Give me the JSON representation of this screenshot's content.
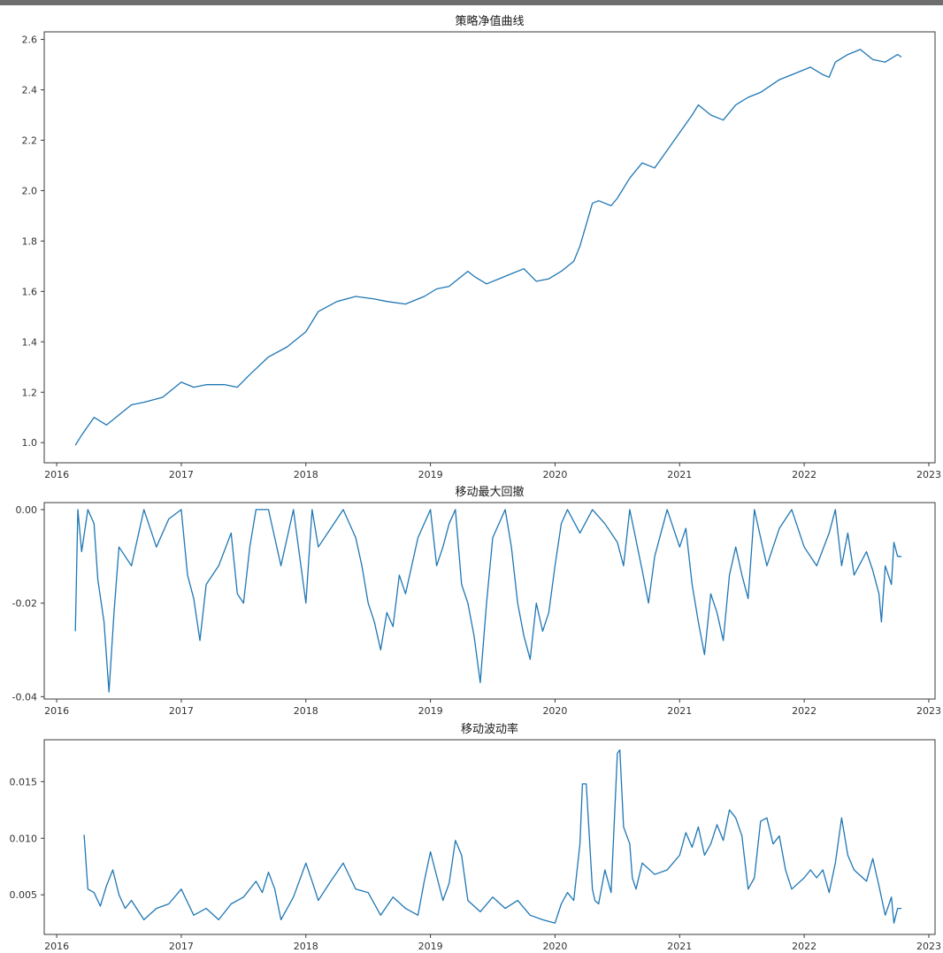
{
  "chart_data": [
    {
      "type": "line",
      "title": "策略净值曲线",
      "xlabel": "",
      "ylabel": "",
      "x_ticks": [
        "2016",
        "2017",
        "2018",
        "2019",
        "2020",
        "2021",
        "2022",
        "2023"
      ],
      "x_range": [
        2015.9,
        2023.05
      ],
      "y_ticks": [
        "1.0",
        "1.2",
        "1.4",
        "1.6",
        "1.8",
        "2.0",
        "2.2",
        "2.4",
        "2.6"
      ],
      "ylim": [
        0.92,
        2.63
      ],
      "grid": false,
      "series": [
        {
          "x": [
            2016.15,
            2016.2,
            2016.3,
            2016.4,
            2016.5,
            2016.6,
            2016.7,
            2016.85,
            2017.0,
            2017.1,
            2017.2,
            2017.35,
            2017.45,
            2017.55,
            2017.7,
            2017.85,
            2018.0,
            2018.1,
            2018.25,
            2018.4,
            2018.55,
            2018.65,
            2018.8,
            2018.95,
            2019.05,
            2019.15,
            2019.2,
            2019.3,
            2019.35,
            2019.45,
            2019.55,
            2019.65,
            2019.75,
            2019.85,
            2019.95,
            2020.05,
            2020.15,
            2020.2,
            2020.3,
            2020.35,
            2020.45,
            2020.5,
            2020.6,
            2020.7,
            2020.8,
            2020.9,
            2021.0,
            2021.1,
            2021.15,
            2021.25,
            2021.35,
            2021.45,
            2021.55,
            2021.65,
            2021.8,
            2021.95,
            2022.05,
            2022.15,
            2022.2,
            2022.25,
            2022.35,
            2022.45,
            2022.55,
            2022.65,
            2022.75,
            2022.78
          ],
          "values": [
            0.99,
            1.03,
            1.1,
            1.07,
            1.11,
            1.15,
            1.16,
            1.18,
            1.24,
            1.22,
            1.23,
            1.23,
            1.22,
            1.27,
            1.34,
            1.38,
            1.44,
            1.52,
            1.56,
            1.58,
            1.57,
            1.56,
            1.55,
            1.58,
            1.61,
            1.62,
            1.64,
            1.68,
            1.66,
            1.63,
            1.65,
            1.67,
            1.69,
            1.64,
            1.65,
            1.68,
            1.72,
            1.78,
            1.95,
            1.96,
            1.94,
            1.97,
            2.05,
            2.11,
            2.09,
            2.16,
            2.23,
            2.3,
            2.34,
            2.3,
            2.28,
            2.34,
            2.37,
            2.39,
            2.44,
            2.47,
            2.49,
            2.46,
            2.45,
            2.51,
            2.54,
            2.56,
            2.52,
            2.51,
            2.54,
            2.53
          ]
        }
      ]
    },
    {
      "type": "line",
      "title": "移动最大回撤",
      "xlabel": "",
      "ylabel": "",
      "x_ticks": [
        "2016",
        "2017",
        "2018",
        "2019",
        "2020",
        "2021",
        "2022",
        "2023"
      ],
      "x_range": [
        2015.9,
        2023.05
      ],
      "y_ticks": [
        "0.00",
        "-0.02",
        "-0.04"
      ],
      "ylim": [
        -0.0405,
        0.0015
      ],
      "grid": false,
      "series": [
        {
          "x": [
            2016.15,
            2016.17,
            2016.2,
            2016.25,
            2016.3,
            2016.33,
            2016.38,
            2016.42,
            2016.46,
            2016.5,
            2016.6,
            2016.7,
            2016.8,
            2016.9,
            2017.0,
            2017.05,
            2017.1,
            2017.15,
            2017.2,
            2017.3,
            2017.4,
            2017.45,
            2017.5,
            2017.55,
            2017.6,
            2017.7,
            2017.8,
            2017.9,
            2018.0,
            2018.05,
            2018.1,
            2018.2,
            2018.3,
            2018.4,
            2018.45,
            2018.5,
            2018.55,
            2018.6,
            2018.65,
            2018.7,
            2018.75,
            2018.8,
            2018.9,
            2019.0,
            2019.05,
            2019.1,
            2019.15,
            2019.2,
            2019.25,
            2019.3,
            2019.35,
            2019.4,
            2019.45,
            2019.5,
            2019.6,
            2019.65,
            2019.7,
            2019.75,
            2019.8,
            2019.85,
            2019.9,
            2019.95,
            2020.0,
            2020.05,
            2020.1,
            2020.2,
            2020.3,
            2020.4,
            2020.5,
            2020.55,
            2020.6,
            2020.7,
            2020.75,
            2020.8,
            2020.9,
            2021.0,
            2021.05,
            2021.1,
            2021.15,
            2021.2,
            2021.25,
            2021.3,
            2021.35,
            2021.4,
            2021.45,
            2021.5,
            2021.55,
            2021.6,
            2021.65,
            2021.7,
            2021.8,
            2021.9,
            2022.0,
            2022.1,
            2022.2,
            2022.25,
            2022.3,
            2022.35,
            2022.4,
            2022.5,
            2022.55,
            2022.6,
            2022.62,
            2022.65,
            2022.7,
            2022.72,
            2022.75,
            2022.78
          ],
          "values": [
            -0.026,
            0.0,
            -0.009,
            0.0,
            -0.003,
            -0.015,
            -0.024,
            -0.039,
            -0.022,
            -0.008,
            -0.012,
            0.0,
            -0.008,
            -0.002,
            0.0,
            -0.014,
            -0.019,
            -0.028,
            -0.016,
            -0.012,
            -0.005,
            -0.018,
            -0.02,
            -0.008,
            0.0,
            0.0,
            -0.012,
            0.0,
            -0.02,
            0.0,
            -0.008,
            -0.004,
            0.0,
            -0.006,
            -0.012,
            -0.02,
            -0.024,
            -0.03,
            -0.022,
            -0.025,
            -0.014,
            -0.018,
            -0.006,
            0.0,
            -0.012,
            -0.008,
            -0.003,
            0.0,
            -0.016,
            -0.02,
            -0.027,
            -0.037,
            -0.02,
            -0.006,
            0.0,
            -0.008,
            -0.02,
            -0.027,
            -0.032,
            -0.02,
            -0.026,
            -0.022,
            -0.012,
            -0.003,
            0.0,
            -0.005,
            0.0,
            -0.003,
            -0.007,
            -0.012,
            0.0,
            -0.013,
            -0.02,
            -0.01,
            0.0,
            -0.008,
            -0.004,
            -0.016,
            -0.024,
            -0.031,
            -0.018,
            -0.022,
            -0.028,
            -0.014,
            -0.008,
            -0.014,
            -0.019,
            0.0,
            -0.006,
            -0.012,
            -0.004,
            0.0,
            -0.008,
            -0.012,
            -0.005,
            0.0,
            -0.012,
            -0.005,
            -0.014,
            -0.009,
            -0.013,
            -0.018,
            -0.024,
            -0.012,
            -0.016,
            -0.007,
            -0.01,
            -0.01
          ]
        }
      ]
    },
    {
      "type": "line",
      "title": "移动波动率",
      "xlabel": "",
      "ylabel": "",
      "x_ticks": [
        "2016",
        "2017",
        "2018",
        "2019",
        "2020",
        "2021",
        "2022",
        "2023"
      ],
      "x_range": [
        2015.9,
        2023.05
      ],
      "y_ticks": [
        "0.005",
        "0.010",
        "0.015"
      ],
      "ylim": [
        0.0015,
        0.0187
      ],
      "grid": false,
      "series": [
        {
          "x": [
            2016.22,
            2016.25,
            2016.3,
            2016.35,
            2016.4,
            2016.45,
            2016.5,
            2016.55,
            2016.6,
            2016.7,
            2016.8,
            2016.9,
            2017.0,
            2017.1,
            2017.2,
            2017.3,
            2017.4,
            2017.5,
            2017.6,
            2017.65,
            2017.7,
            2017.75,
            2017.8,
            2017.9,
            2018.0,
            2018.05,
            2018.1,
            2018.2,
            2018.3,
            2018.4,
            2018.5,
            2018.6,
            2018.7,
            2018.8,
            2018.9,
            2018.95,
            2019.0,
            2019.1,
            2019.15,
            2019.2,
            2019.25,
            2019.3,
            2019.4,
            2019.5,
            2019.6,
            2019.7,
            2019.8,
            2019.9,
            2020.0,
            2020.05,
            2020.1,
            2020.15,
            2020.2,
            2020.22,
            2020.25,
            2020.3,
            2020.32,
            2020.35,
            2020.4,
            2020.45,
            2020.5,
            2020.52,
            2020.55,
            2020.6,
            2020.62,
            2020.65,
            2020.7,
            2020.8,
            2020.9,
            2021.0,
            2021.05,
            2021.1,
            2021.15,
            2021.2,
            2021.25,
            2021.3,
            2021.35,
            2021.4,
            2021.45,
            2021.5,
            2021.55,
            2021.6,
            2021.65,
            2021.7,
            2021.75,
            2021.8,
            2021.85,
            2021.9,
            2022.0,
            2022.05,
            2022.1,
            2022.15,
            2022.2,
            2022.25,
            2022.3,
            2022.35,
            2022.4,
            2022.5,
            2022.55,
            2022.6,
            2022.65,
            2022.7,
            2022.72,
            2022.75,
            2022.78
          ],
          "values": [
            0.0103,
            0.0055,
            0.0052,
            0.004,
            0.0058,
            0.0072,
            0.005,
            0.0038,
            0.0045,
            0.0028,
            0.0038,
            0.0042,
            0.0055,
            0.0032,
            0.0038,
            0.0028,
            0.0042,
            0.0048,
            0.0062,
            0.0052,
            0.007,
            0.0055,
            0.0028,
            0.0048,
            0.0078,
            0.0062,
            0.0045,
            0.0062,
            0.0078,
            0.0055,
            0.0052,
            0.0032,
            0.0048,
            0.0038,
            0.0032,
            0.0062,
            0.0088,
            0.0045,
            0.006,
            0.0098,
            0.0085,
            0.0045,
            0.0035,
            0.0048,
            0.0038,
            0.0045,
            0.0032,
            0.0028,
            0.0025,
            0.0042,
            0.0052,
            0.0045,
            0.0095,
            0.0148,
            0.0148,
            0.0055,
            0.0045,
            0.0042,
            0.0072,
            0.0052,
            0.0175,
            0.0178,
            0.011,
            0.0095,
            0.0065,
            0.0055,
            0.0078,
            0.0068,
            0.0072,
            0.0085,
            0.0105,
            0.0092,
            0.011,
            0.0085,
            0.0095,
            0.0112,
            0.0098,
            0.0125,
            0.0118,
            0.0102,
            0.0055,
            0.0065,
            0.0115,
            0.0118,
            0.0095,
            0.0102,
            0.0072,
            0.0055,
            0.0065,
            0.0072,
            0.0065,
            0.0072,
            0.0052,
            0.0078,
            0.0118,
            0.0085,
            0.0072,
            0.0062,
            0.0082,
            0.0058,
            0.0032,
            0.0048,
            0.0025,
            0.0038,
            0.0038
          ]
        }
      ]
    }
  ]
}
